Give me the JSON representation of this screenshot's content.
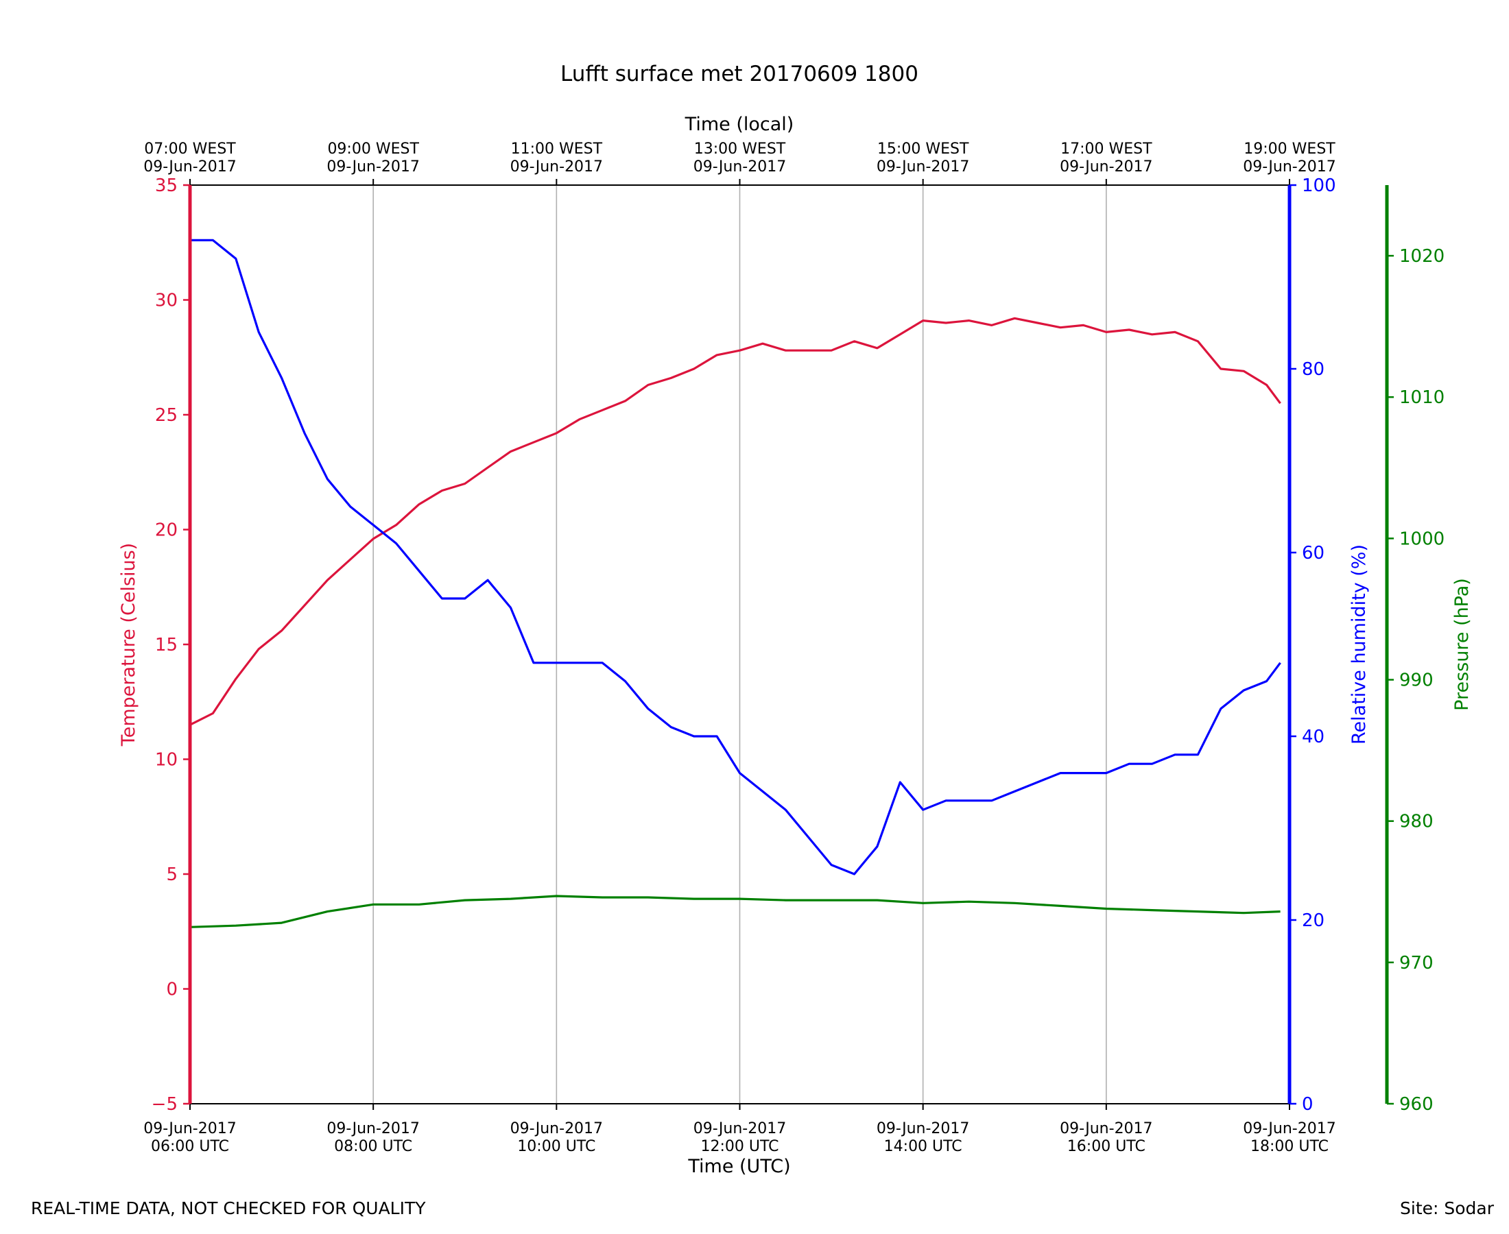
{
  "colors": {
    "temperature": "#dc143c",
    "humidity": "#0000ff",
    "pressure": "#008000",
    "grid": "#b0b0b0",
    "axis": "#000000"
  },
  "footer": {
    "left": "REAL-TIME DATA, NOT CHECKED FOR QUALITY",
    "right": "Site: Sodar"
  },
  "chart_data": {
    "type": "line",
    "title": "Lufft surface met 20170609 1800",
    "grid": "vertical",
    "legend": "none",
    "x_axis": {
      "label": "Time (UTC)",
      "range_hours_utc": [
        6,
        18
      ],
      "tick_hours": [
        6,
        8,
        10,
        12,
        14,
        16,
        18
      ],
      "tick_labels": [
        [
          "09-Jun-2017",
          "06:00 UTC"
        ],
        [
          "09-Jun-2017",
          "08:00 UTC"
        ],
        [
          "09-Jun-2017",
          "10:00 UTC"
        ],
        [
          "09-Jun-2017",
          "12:00 UTC"
        ],
        [
          "09-Jun-2017",
          "14:00 UTC"
        ],
        [
          "09-Jun-2017",
          "16:00 UTC"
        ],
        [
          "09-Jun-2017",
          "18:00 UTC"
        ]
      ]
    },
    "x_axis_top": {
      "label": "Time (local)",
      "tick_labels": [
        [
          "07:00 WEST",
          "09-Jun-2017"
        ],
        [
          "09:00 WEST",
          "09-Jun-2017"
        ],
        [
          "11:00 WEST",
          "09-Jun-2017"
        ],
        [
          "13:00 WEST",
          "09-Jun-2017"
        ],
        [
          "15:00 WEST",
          "09-Jun-2017"
        ],
        [
          "17:00 WEST",
          "09-Jun-2017"
        ],
        [
          "19:00 WEST",
          "09-Jun-2017"
        ]
      ]
    },
    "y_axes": {
      "temperature": {
        "label": "Temperature (Celsius)",
        "ylim": [
          -5,
          35
        ],
        "ticks": [
          -5,
          0,
          5,
          10,
          15,
          20,
          25,
          30,
          35
        ],
        "tick_labels": [
          "−5",
          "0",
          "5",
          "10",
          "15",
          "20",
          "25",
          "30",
          "35"
        ]
      },
      "humidity": {
        "label": "Relative humidity (%)",
        "ylim": [
          0,
          100
        ],
        "ticks": [
          0,
          20,
          40,
          60,
          80,
          100
        ],
        "tick_labels": [
          "0",
          "20",
          "40",
          "60",
          "80",
          "100"
        ]
      },
      "pressure": {
        "label": "Pressure (hPa)",
        "ylim": [
          960,
          1025
        ],
        "ticks": [
          960,
          970,
          980,
          990,
          1000,
          1010,
          1020
        ],
        "tick_labels": [
          "960",
          "970",
          "980",
          "990",
          "1000",
          "1010",
          "1020"
        ]
      }
    },
    "series": [
      {
        "key": "temperature",
        "axis": "temperature",
        "x": [
          6.0,
          6.25,
          6.5,
          6.75,
          7.0,
          7.25,
          7.5,
          7.75,
          8.0,
          8.25,
          8.5,
          8.75,
          9.0,
          9.25,
          9.5,
          9.75,
          10.0,
          10.25,
          10.5,
          10.75,
          11.0,
          11.25,
          11.5,
          11.75,
          12.0,
          12.25,
          12.5,
          12.75,
          13.0,
          13.25,
          13.5,
          13.75,
          14.0,
          14.25,
          14.5,
          14.75,
          15.0,
          15.25,
          15.5,
          15.75,
          16.0,
          16.25,
          16.5,
          16.75,
          17.0,
          17.25,
          17.5,
          17.75,
          17.9
        ],
        "y": [
          11.5,
          12.0,
          13.5,
          14.8,
          15.6,
          16.7,
          17.8,
          18.7,
          19.6,
          20.2,
          21.1,
          21.7,
          22.0,
          22.7,
          23.4,
          23.8,
          24.2,
          24.8,
          25.2,
          25.6,
          26.3,
          26.6,
          27.0,
          27.6,
          27.8,
          28.1,
          27.8,
          27.8,
          27.8,
          28.2,
          27.9,
          28.5,
          29.1,
          29.0,
          29.1,
          28.9,
          29.2,
          29.0,
          28.8,
          28.9,
          28.6,
          28.7,
          28.5,
          28.6,
          28.2,
          27.0,
          26.9,
          26.3,
          25.5
        ]
      },
      {
        "key": "humidity",
        "axis": "humidity",
        "x": [
          6.0,
          6.25,
          6.5,
          6.75,
          7.0,
          7.25,
          7.5,
          7.75,
          8.0,
          8.25,
          8.5,
          8.75,
          9.0,
          9.25,
          9.5,
          9.75,
          10.0,
          10.25,
          10.5,
          10.75,
          11.0,
          11.25,
          11.5,
          11.75,
          12.0,
          12.25,
          12.5,
          12.75,
          13.0,
          13.25,
          13.5,
          13.75,
          14.0,
          14.25,
          14.5,
          14.75,
          15.0,
          15.25,
          15.5,
          15.75,
          16.0,
          16.25,
          16.5,
          16.75,
          17.0,
          17.25,
          17.5,
          17.75,
          17.9
        ],
        "y": [
          94,
          94,
          92,
          84,
          79,
          73,
          68,
          65,
          63,
          61,
          58,
          55,
          55,
          57,
          54,
          48,
          48,
          48,
          48,
          46,
          43,
          41,
          40,
          40,
          36,
          34,
          32,
          29,
          26,
          25,
          28,
          35,
          32,
          33,
          33,
          33,
          34,
          35,
          36,
          36,
          36,
          37,
          37,
          38,
          38,
          43,
          45,
          46,
          48
        ]
      },
      {
        "key": "pressure",
        "axis": "pressure",
        "x": [
          6.0,
          6.5,
          7.0,
          7.5,
          8.0,
          8.5,
          9.0,
          9.5,
          10.0,
          10.5,
          11.0,
          11.5,
          12.0,
          12.5,
          13.0,
          13.5,
          14.0,
          14.5,
          15.0,
          15.5,
          16.0,
          16.5,
          17.0,
          17.5,
          17.9
        ],
        "y": [
          972.5,
          972.6,
          972.8,
          973.6,
          974.1,
          974.1,
          974.4,
          974.5,
          974.7,
          974.6,
          974.6,
          974.5,
          974.5,
          974.4,
          974.4,
          974.4,
          974.2,
          974.3,
          974.2,
          974.0,
          973.8,
          973.7,
          973.6,
          973.5,
          973.6
        ]
      }
    ]
  }
}
